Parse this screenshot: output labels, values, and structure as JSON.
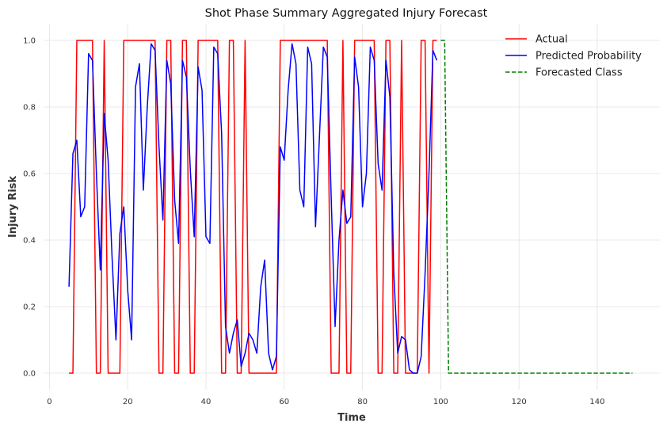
{
  "chart_data": {
    "type": "line",
    "title": "Shot Phase Summary Aggregated Injury Forecast",
    "xlabel": "Time",
    "ylabel": "Injury Risk",
    "xlim": [
      -1.5,
      156
    ],
    "ylim": [
      -0.05,
      1.05
    ],
    "xticks": [
      0,
      20,
      40,
      60,
      80,
      100,
      120,
      140
    ],
    "yticks": [
      0.0,
      0.2,
      0.4,
      0.6,
      0.8,
      1.0
    ],
    "xtick_labels": [
      "0",
      "20",
      "40",
      "60",
      "80",
      "100",
      "120",
      "140"
    ],
    "ytick_labels": [
      "0.0",
      "0.2",
      "0.4",
      "0.6",
      "0.8",
      "1.0"
    ],
    "grid": true,
    "legend_position": "top-right",
    "series": [
      {
        "name": "Actual",
        "color": "#ff0000",
        "style": "solid",
        "x": [
          5,
          6,
          7,
          8,
          9,
          10,
          11,
          12,
          13,
          14,
          15,
          16,
          17,
          18,
          19,
          20,
          21,
          22,
          23,
          24,
          25,
          26,
          27,
          28,
          29,
          30,
          31,
          32,
          33,
          34,
          35,
          36,
          37,
          38,
          39,
          40,
          41,
          42,
          43,
          44,
          45,
          46,
          47,
          48,
          49,
          50,
          51,
          52,
          53,
          54,
          55,
          56,
          57,
          58,
          59,
          60,
          61,
          62,
          63,
          64,
          65,
          66,
          67,
          68,
          69,
          70,
          71,
          72,
          73,
          74,
          75,
          76,
          77,
          78,
          79,
          80,
          81,
          82,
          83,
          84,
          85,
          86,
          87,
          88,
          89,
          90,
          91,
          92,
          93,
          94,
          95,
          96,
          97,
          98,
          99
        ],
        "values": [
          0,
          0,
          1,
          1,
          1,
          1,
          1,
          0,
          0,
          1,
          0,
          0,
          0,
          0,
          1,
          1,
          1,
          1,
          1,
          1,
          1,
          1,
          1,
          0,
          0,
          1,
          1,
          0,
          0,
          1,
          1,
          0,
          0,
          1,
          1,
          1,
          1,
          1,
          1,
          0,
          0,
          1,
          1,
          0,
          0,
          1,
          0,
          0,
          0,
          0,
          0,
          0,
          0,
          0,
          1,
          1,
          1,
          1,
          1,
          1,
          1,
          1,
          1,
          1,
          1,
          1,
          1,
          0,
          0,
          0,
          1,
          0,
          0,
          1,
          1,
          1,
          1,
          1,
          1,
          0,
          0,
          1,
          1,
          0,
          0,
          1,
          0,
          0,
          0,
          0,
          1,
          1,
          0,
          1,
          1
        ]
      },
      {
        "name": "Predicted Probability",
        "color": "#0000ff",
        "style": "solid",
        "x": [
          5,
          6,
          7,
          8,
          9,
          10,
          11,
          12,
          13,
          14,
          15,
          16,
          17,
          18,
          19,
          20,
          21,
          22,
          23,
          24,
          25,
          26,
          27,
          28,
          29,
          30,
          31,
          32,
          33,
          34,
          35,
          36,
          37,
          38,
          39,
          40,
          41,
          42,
          43,
          44,
          45,
          46,
          47,
          48,
          49,
          50,
          51,
          52,
          53,
          54,
          55,
          56,
          57,
          58,
          59,
          60,
          61,
          62,
          63,
          64,
          65,
          66,
          67,
          68,
          69,
          70,
          71,
          72,
          73,
          74,
          75,
          76,
          77,
          78,
          79,
          80,
          81,
          82,
          83,
          84,
          85,
          86,
          87,
          88,
          89,
          90,
          91,
          92,
          93,
          94,
          95,
          96,
          97,
          98,
          99
        ],
        "values": [
          0.26,
          0.66,
          0.7,
          0.47,
          0.5,
          0.96,
          0.94,
          0.6,
          0.31,
          0.78,
          0.64,
          0.35,
          0.1,
          0.42,
          0.5,
          0.25,
          0.1,
          0.86,
          0.93,
          0.55,
          0.8,
          0.99,
          0.97,
          0.68,
          0.46,
          0.94,
          0.87,
          0.52,
          0.39,
          0.94,
          0.89,
          0.61,
          0.41,
          0.92,
          0.85,
          0.41,
          0.39,
          0.98,
          0.96,
          0.72,
          0.14,
          0.06,
          0.12,
          0.16,
          0.02,
          0.06,
          0.12,
          0.1,
          0.06,
          0.26,
          0.34,
          0.06,
          0.01,
          0.05,
          0.68,
          0.64,
          0.85,
          0.99,
          0.93,
          0.55,
          0.5,
          0.98,
          0.93,
          0.44,
          0.71,
          0.98,
          0.95,
          0.53,
          0.14,
          0.4,
          0.55,
          0.45,
          0.47,
          0.95,
          0.86,
          0.5,
          0.6,
          0.98,
          0.94,
          0.63,
          0.55,
          0.94,
          0.83,
          0.3,
          0.06,
          0.11,
          0.1,
          0.01,
          0.0,
          0.0,
          0.05,
          0.3,
          0.6,
          0.97,
          0.94
        ]
      },
      {
        "name": "Forecasted Class",
        "color": "#008000",
        "style": "dashed",
        "x": [
          100,
          101,
          102,
          149
        ],
        "values": [
          1,
          1,
          0,
          0
        ]
      }
    ]
  }
}
